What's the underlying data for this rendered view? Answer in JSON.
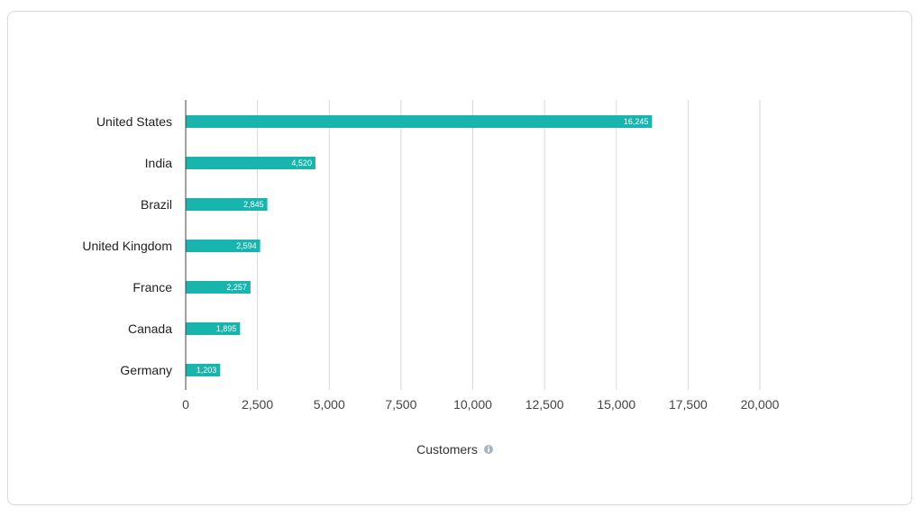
{
  "chart_data": {
    "type": "bar",
    "orientation": "horizontal",
    "categories": [
      "United States",
      "India",
      "Brazil",
      "United Kingdom",
      "France",
      "Canada",
      "Germany"
    ],
    "values": [
      16245,
      4520,
      2845,
      2594,
      2257,
      1895,
      1203
    ],
    "value_labels": [
      "16,245",
      "4,520",
      "2,845",
      "2,594",
      "2,257",
      "1,895",
      "1,203"
    ],
    "xlabel": "Customers",
    "xlim": [
      0,
      20000
    ],
    "x_ticks": [
      0,
      2500,
      5000,
      7500,
      10000,
      12500,
      15000,
      17500,
      20000
    ],
    "x_tick_labels": [
      "0",
      "2,500",
      "5,000",
      "7,500",
      "10,000",
      "12,500",
      "15,000",
      "17,500",
      "20,000"
    ],
    "grid": "vertical",
    "bar_color": "#17b5ad",
    "grid_color": "#d9d9d9",
    "axis_color": "#444444",
    "info_icon": "info-icon",
    "info_icon_color": "#aab4c0"
  }
}
